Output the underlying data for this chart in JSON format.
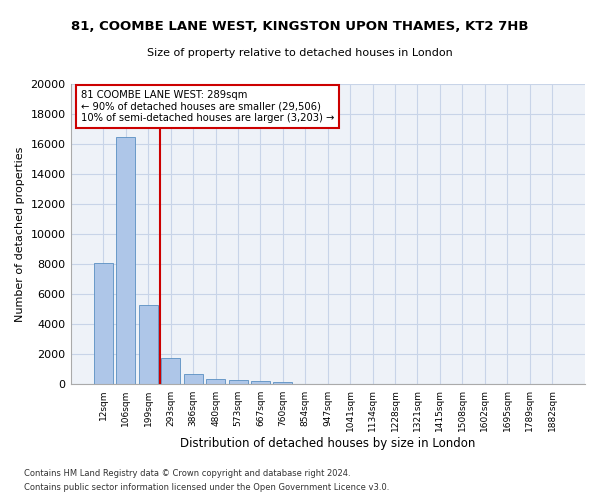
{
  "title": "81, COOMBE LANE WEST, KINGSTON UPON THAMES, KT2 7HB",
  "subtitle": "Size of property relative to detached houses in London",
  "xlabel": "Distribution of detached houses by size in London",
  "ylabel": "Number of detached properties",
  "bar_values": [
    8100,
    16500,
    5300,
    1750,
    700,
    350,
    270,
    200,
    170,
    0,
    0,
    0,
    0,
    0,
    0,
    0,
    0,
    0,
    0,
    0,
    0
  ],
  "bar_labels": [
    "12sqm",
    "106sqm",
    "199sqm",
    "293sqm",
    "386sqm",
    "480sqm",
    "573sqm",
    "667sqm",
    "760sqm",
    "854sqm",
    "947sqm",
    "1041sqm",
    "1134sqm",
    "1228sqm",
    "1321sqm",
    "1415sqm",
    "1508sqm",
    "1602sqm",
    "1695sqm",
    "1789sqm",
    "1882sqm"
  ],
  "bar_color": "#aec6e8",
  "bar_edge_color": "#5a8fc2",
  "vline_x": 2.5,
  "vline_color": "#cc0000",
  "annotation_line1": "81 COOMBE LANE WEST: 289sqm",
  "annotation_line2": "← 90% of detached houses are smaller (29,506)",
  "annotation_line3": "10% of semi-detached houses are larger (3,203) →",
  "annotation_box_color": "#cc0000",
  "ylim": [
    0,
    20000
  ],
  "yticks": [
    0,
    2000,
    4000,
    6000,
    8000,
    10000,
    12000,
    14000,
    16000,
    18000,
    20000
  ],
  "grid_color": "#c8d4e8",
  "bg_color": "#eef2f8",
  "footer1": "Contains HM Land Registry data © Crown copyright and database right 2024.",
  "footer2": "Contains public sector information licensed under the Open Government Licence v3.0."
}
